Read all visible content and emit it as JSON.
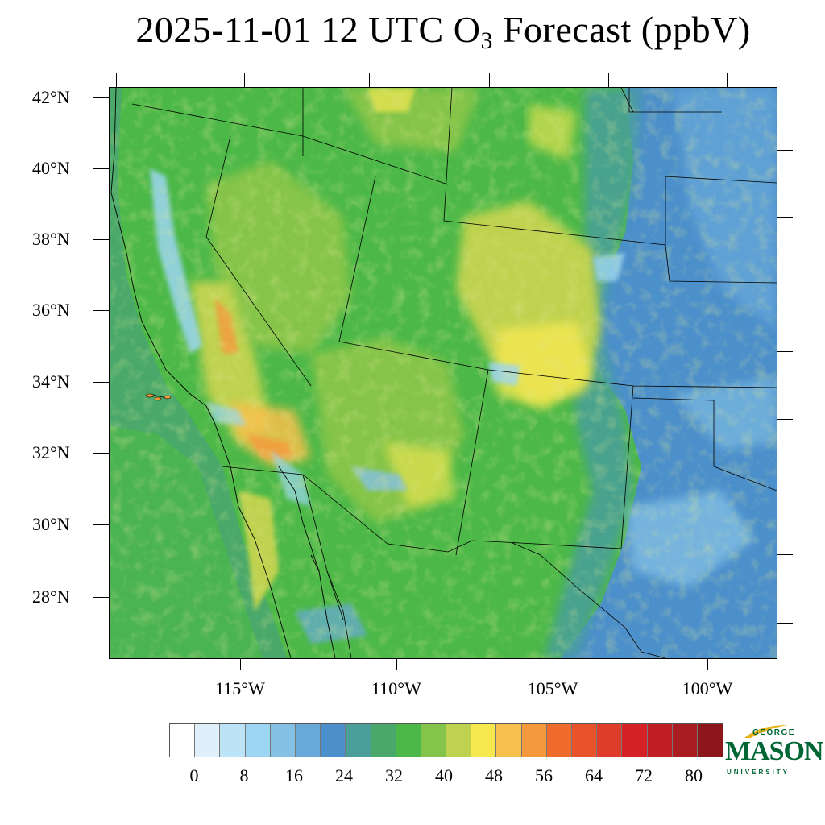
{
  "title": {
    "main": "2025-11-01 12 UTC O",
    "sub": "3",
    "tail": " Forecast (ppbV)"
  },
  "map": {
    "lat_labels": [
      "42°N",
      "40°N",
      "38°N",
      "36°N",
      "34°N",
      "32°N",
      "30°N",
      "28°N"
    ],
    "lon_labels": [
      "115°W",
      "110°W",
      "105°W",
      "100°W"
    ],
    "dominant_fill": "#4cb848"
  },
  "colorbar": {
    "colors": [
      "#ffffff",
      "#dff0fa",
      "#bde3f6",
      "#9dd6f2",
      "#85c1e5",
      "#69a9da",
      "#4b8fcb",
      "#4a9f9b",
      "#49a86a",
      "#4cb848",
      "#85c44a",
      "#bfd24f",
      "#f6e84f",
      "#f8c04c",
      "#f59a3c",
      "#f06c2c",
      "#e8532a",
      "#e03c2a",
      "#d42227",
      "#c01f26",
      "#a81c22",
      "#8c1619"
    ],
    "labels": [
      "0",
      "8",
      "16",
      "24",
      "32",
      "40",
      "48",
      "56",
      "64",
      "72",
      "80"
    ]
  },
  "logo": {
    "line1": "GEORGE",
    "line2": "MASON",
    "line3": "UNIVERSITY",
    "color": "#006633",
    "accent": "#e8b21a"
  }
}
